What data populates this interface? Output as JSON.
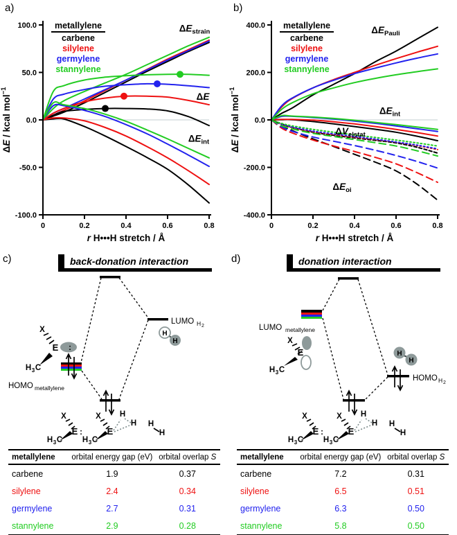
{
  "panels": {
    "a": {
      "label": "a)"
    },
    "b": {
      "label": "b)"
    },
    "c": {
      "label": "c)"
    },
    "d": {
      "label": "d)"
    }
  },
  "colors": {
    "black": "#000000",
    "red": "#ee1111",
    "blue": "#2222ee",
    "green": "#22cc22",
    "orbital_gray": "#8e9a9a",
    "zero_line": "#c3ccd2"
  },
  "legend": {
    "title": "metallylene",
    "items": [
      {
        "label": "carbene",
        "color": "#000000"
      },
      {
        "label": "silylene",
        "color": "#ee1111"
      },
      {
        "label": "germylene",
        "color": "#2222ee"
      },
      {
        "label": "stannylene",
        "color": "#22cc22"
      }
    ]
  },
  "chart_data": [
    {
      "id": "a",
      "type": "line",
      "panel_label": "a)",
      "xlabel": {
        "italic": "r",
        "rest": " H•••H stretch / Å"
      },
      "ylabel": {
        "pre": "Δ",
        "italic": "E",
        "rest": " / kcal mol",
        "sup": "−1"
      },
      "xlim": [
        0,
        0.8
      ],
      "ylim": [
        -100,
        100
      ],
      "xticks": [
        {
          "v": 0,
          "label": "0"
        },
        {
          "v": 0.2,
          "label": "0.2"
        },
        {
          "v": 0.4,
          "label": "0.4"
        },
        {
          "v": 0.6,
          "label": "0.6"
        },
        {
          "v": 0.8,
          "label": "0.8"
        }
      ],
      "yticks": [
        {
          "v": 100,
          "label": "100.0"
        },
        {
          "v": 50,
          "label": "50.0"
        },
        {
          "v": 0,
          "label": "0.0"
        },
        {
          "v": -50,
          "label": "-50.0"
        },
        {
          "v": -100,
          "label": "-100.0"
        }
      ],
      "x": [
        0,
        0.05,
        0.1,
        0.2,
        0.3,
        0.4,
        0.5,
        0.6,
        0.7,
        0.8
      ],
      "series": [
        {
          "group": "dE_strain",
          "name": "carbene",
          "color": "#000000",
          "dash": "solid",
          "y": [
            0,
            4,
            8,
            18,
            29,
            40,
            51,
            61.5,
            72,
            81.5
          ]
        },
        {
          "group": "dE_strain",
          "name": "silylene",
          "color": "#ee1111",
          "dash": "solid",
          "y": [
            0,
            5,
            10,
            20,
            31,
            42,
            53,
            64,
            74,
            84
          ]
        },
        {
          "group": "dE_strain",
          "name": "germylene",
          "color": "#2222ee",
          "dash": "solid",
          "y": [
            0,
            7,
            12,
            22,
            32,
            42,
            52.5,
            63,
            73,
            83
          ]
        },
        {
          "group": "dE_strain",
          "name": "stannylene",
          "color": "#22cc22",
          "dash": "solid",
          "y": [
            0,
            12,
            20,
            30,
            39,
            48,
            58,
            68,
            78,
            87
          ]
        },
        {
          "group": "dE",
          "name": "carbene",
          "color": "#000000",
          "dash": "solid",
          "y": [
            0,
            5,
            9,
            11,
            12,
            12,
            11.5,
            9.5,
            3.5,
            -6
          ]
        },
        {
          "group": "dE",
          "name": "silylene",
          "color": "#ee1111",
          "dash": "solid",
          "y": [
            0,
            7,
            12,
            19,
            23,
            25,
            25,
            24,
            20.5,
            16
          ]
        },
        {
          "group": "dE",
          "name": "germylene",
          "color": "#2222ee",
          "dash": "solid",
          "y": [
            0,
            22,
            27,
            32,
            35.5,
            37,
            38,
            37.5,
            36,
            34
          ]
        },
        {
          "group": "dE",
          "name": "stannylene",
          "color": "#22cc22",
          "dash": "solid",
          "y": [
            0,
            30,
            36,
            42,
            45,
            46.5,
            47.5,
            48,
            48,
            47
          ]
        },
        {
          "group": "dE_int",
          "name": "carbene",
          "color": "#000000",
          "dash": "solid",
          "y": [
            0,
            1,
            1,
            -7,
            -17,
            -28,
            -39.5,
            -52,
            -68.5,
            -87.5
          ]
        },
        {
          "group": "dE_int",
          "name": "silylene",
          "color": "#ee1111",
          "dash": "solid",
          "y": [
            0,
            2,
            2,
            -1,
            -8,
            -17,
            -28,
            -40,
            -53.5,
            -68
          ]
        },
        {
          "group": "dE_int",
          "name": "germylene",
          "color": "#2222ee",
          "dash": "solid",
          "y": [
            0,
            15,
            15,
            10,
            3.5,
            -5,
            -14.5,
            -25.5,
            -37,
            -49
          ]
        },
        {
          "group": "dE_int",
          "name": "stannylene",
          "color": "#22cc22",
          "dash": "solid",
          "y": [
            0,
            18,
            16,
            12,
            6,
            -1.5,
            -10.5,
            -20,
            -30,
            -40
          ]
        }
      ],
      "markers": [
        {
          "x": 0.3,
          "y": 12,
          "color": "#000000"
        },
        {
          "x": 0.39,
          "y": 25,
          "color": "#ee1111"
        },
        {
          "x": 0.55,
          "y": 38,
          "color": "#2222ee"
        },
        {
          "x": 0.66,
          "y": 48,
          "color": "#22cc22"
        }
      ],
      "annotations": [
        {
          "pre": "Δ",
          "main": "E",
          "sub": "strain",
          "x": 0.73,
          "y": 93
        },
        {
          "pre": "Δ",
          "main": "E",
          "sub": "",
          "x": 0.77,
          "y": 21
        },
        {
          "pre": "Δ",
          "main": "E",
          "sub": "int",
          "x": 0.75,
          "y": -23
        }
      ]
    },
    {
      "id": "b",
      "type": "line",
      "panel_label": "b)",
      "xlabel": {
        "italic": "r",
        "rest": " H•••H stretch / Å"
      },
      "ylabel": {
        "pre": "Δ",
        "italic": "E",
        "rest": " / kcal mol",
        "sup": "−1"
      },
      "xlim": [
        0,
        0.8
      ],
      "ylim": [
        -400,
        400
      ],
      "xticks": [
        {
          "v": 0,
          "label": "0"
        },
        {
          "v": 0.2,
          "label": "0.2"
        },
        {
          "v": 0.4,
          "label": "0.4"
        },
        {
          "v": 0.6,
          "label": "0.6"
        },
        {
          "v": 0.8,
          "label": "0.8"
        }
      ],
      "yticks": [
        {
          "v": 400,
          "label": "400.0"
        },
        {
          "v": 200,
          "label": "200.0"
        },
        {
          "v": 0,
          "label": "0.0"
        },
        {
          "v": -200,
          "label": "-200.0"
        },
        {
          "v": -400,
          "label": "-400.0"
        }
      ],
      "x": [
        0,
        0.05,
        0.1,
        0.2,
        0.3,
        0.4,
        0.5,
        0.6,
        0.7,
        0.8
      ],
      "series": [
        {
          "group": "dE_Pauli",
          "name": "carbene",
          "color": "#000000",
          "dash": "solid",
          "y": [
            0,
            28,
            50,
            105,
            150,
            195,
            245,
            290,
            340,
            390
          ]
        },
        {
          "group": "dE_Pauli",
          "name": "silylene",
          "color": "#ee1111",
          "dash": "solid",
          "y": [
            0,
            55,
            90,
            135,
            170,
            200,
            230,
            258,
            285,
            310
          ]
        },
        {
          "group": "dE_Pauli",
          "name": "germylene",
          "color": "#2222ee",
          "dash": "solid",
          "y": [
            0,
            60,
            92,
            135,
            167,
            195,
            218,
            240,
            260,
            278
          ]
        },
        {
          "group": "dE_Pauli",
          "name": "stannylene",
          "color": "#22cc22",
          "dash": "solid",
          "y": [
            0,
            45,
            72,
            110,
            135,
            157,
            175,
            190,
            203,
            215
          ]
        },
        {
          "group": "dE_int",
          "name": "carbene",
          "color": "#000000",
          "dash": "solid",
          "y": [
            0,
            1,
            1,
            -7,
            -17,
            -28,
            -39.5,
            -52,
            -68.5,
            -87.5
          ]
        },
        {
          "group": "dE_int",
          "name": "silylene",
          "color": "#ee1111",
          "dash": "solid",
          "y": [
            0,
            2,
            2,
            -1,
            -8,
            -17,
            -28,
            -40,
            -53.5,
            -68
          ]
        },
        {
          "group": "dE_int",
          "name": "germylene",
          "color": "#2222ee",
          "dash": "solid",
          "y": [
            0,
            15,
            15,
            10,
            3.5,
            -5,
            -14.5,
            -25.5,
            -37,
            -49
          ]
        },
        {
          "group": "dE_int",
          "name": "stannylene",
          "color": "#22cc22",
          "dash": "solid",
          "y": [
            0,
            18,
            16,
            12,
            6,
            -1.5,
            -10.5,
            -20,
            -30,
            -40
          ]
        },
        {
          "group": "dV_elstat",
          "name": "carbene",
          "color": "#000000",
          "dash": "shortdash",
          "y": [
            0,
            -18,
            -32,
            -52,
            -65,
            -76,
            -86,
            -97,
            -115,
            -140
          ]
        },
        {
          "group": "dV_elstat",
          "name": "silylene",
          "color": "#ee1111",
          "dash": "dot",
          "y": [
            0,
            -20,
            -32,
            -50,
            -62,
            -73,
            -83,
            -94,
            -108,
            -125
          ]
        },
        {
          "group": "dV_elstat",
          "name": "germylene",
          "color": "#2222ee",
          "dash": "dot",
          "y": [
            0,
            -18,
            -30,
            -47,
            -59,
            -70,
            -81,
            -93,
            -106,
            -122
          ]
        },
        {
          "group": "dV_elstat",
          "name": "stannylene",
          "color": "#22cc22",
          "dash": "dot",
          "y": [
            0,
            -15,
            -25,
            -40,
            -52,
            -63,
            -74,
            -85,
            -97,
            -110
          ]
        },
        {
          "group": "dE_oi",
          "name": "carbene",
          "color": "#000000",
          "dash": "dash",
          "y": [
            0,
            -25,
            -45,
            -80,
            -112,
            -145,
            -178,
            -215,
            -270,
            -338
          ]
        },
        {
          "group": "dE_oi",
          "name": "silylene",
          "color": "#ee1111",
          "dash": "dash",
          "y": [
            0,
            -35,
            -55,
            -85,
            -110,
            -133,
            -158,
            -185,
            -222,
            -263
          ]
        },
        {
          "group": "dE_oi",
          "name": "germylene",
          "color": "#2222ee",
          "dash": "dash",
          "y": [
            0,
            -30,
            -48,
            -72,
            -90,
            -108,
            -128,
            -150,
            -175,
            -203
          ]
        },
        {
          "group": "dE_oi",
          "name": "stannylene",
          "color": "#22cc22",
          "dash": "dash",
          "y": [
            0,
            -25,
            -38,
            -57,
            -70,
            -83,
            -96,
            -110,
            -130,
            -152
          ]
        }
      ],
      "markers": [],
      "annotations": [
        {
          "pre": "Δ",
          "main": "E",
          "sub": "Pauli",
          "x": 0.55,
          "y": 365
        },
        {
          "pre": "Δ",
          "main": "E",
          "sub": "int",
          "x": 0.57,
          "y": 25
        },
        {
          "pre": "Δ",
          "main": "V",
          "sub": "elstat",
          "x": 0.38,
          "y": -62
        },
        {
          "pre": "Δ",
          "main": "E",
          "sub": "oi",
          "x": 0.34,
          "y": -295
        }
      ]
    }
  ],
  "mo": {
    "c": {
      "title": "back-donation interaction",
      "left_level_label": {
        "main": "HOMO",
        "sub": "metallylene"
      },
      "right_level_label": {
        "main": "LUMO",
        "sub": "H",
        "subsub": "2"
      }
    },
    "d": {
      "title": "donation interaction",
      "left_level_label": {
        "main": "LUMO",
        "sub": "metallylene"
      },
      "right_level_label": {
        "main": "HOMO",
        "sub": "H",
        "subsub": "2"
      }
    },
    "atoms": {
      "x": "X",
      "e": "E",
      "h": "H",
      "three": "3",
      "c": "C",
      "lone_pair": ":"
    }
  },
  "tables": {
    "headers": {
      "col1": "metallylene",
      "col2": "orbital energy gap (eV)",
      "col3_main": "orbital overlap ",
      "col3_italic": "S"
    },
    "c": {
      "rows": [
        {
          "name": "carbene",
          "gap": "1.9",
          "overlap": "0.37",
          "color": "#000000"
        },
        {
          "name": "silylene",
          "gap": "2.4",
          "overlap": "0.34",
          "color": "#ee1111"
        },
        {
          "name": "germylene",
          "gap": "2.7",
          "overlap": "0.31",
          "color": "#2222ee"
        },
        {
          "name": "stannylene",
          "gap": "2.9",
          "overlap": "0.28",
          "color": "#22cc22"
        }
      ]
    },
    "d": {
      "rows": [
        {
          "name": "carbene",
          "gap": "7.2",
          "overlap": "0.31",
          "color": "#000000"
        },
        {
          "name": "silylene",
          "gap": "6.5",
          "overlap": "0.51",
          "color": "#ee1111"
        },
        {
          "name": "germylene",
          "gap": "6.3",
          "overlap": "0.50",
          "color": "#2222ee"
        },
        {
          "name": "stannylene",
          "gap": "5.8",
          "overlap": "0.50",
          "color": "#22cc22"
        }
      ]
    }
  }
}
